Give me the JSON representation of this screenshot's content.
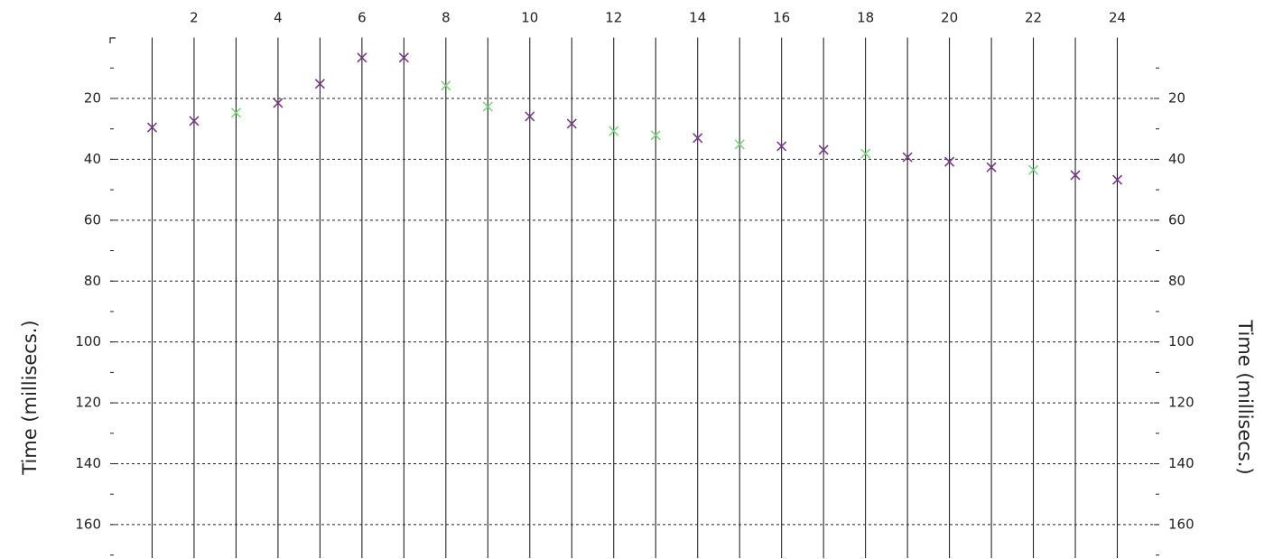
{
  "chart_data": {
    "type": "picks",
    "ylabel": "Time (millisecs.)",
    "y2label": "Time (millisecs.)",
    "x": [
      1,
      2,
      3,
      4,
      5,
      6,
      7,
      8,
      9,
      10,
      11,
      12,
      13,
      14,
      15,
      16,
      17,
      18,
      19,
      20,
      21,
      22,
      23,
      24
    ],
    "values": [
      29.5,
      27.4,
      24.7,
      21.5,
      15.2,
      6.6,
      6.6,
      15.8,
      22.7,
      25.9,
      28.3,
      30.7,
      32.1,
      33.0,
      35.1,
      35.7,
      36.9,
      38.1,
      39.3,
      40.8,
      42.6,
      43.5,
      45.2,
      46.7
    ],
    "point_colors": [
      "#7a3a8a",
      "#7a3a8a",
      "#7fd67f",
      "#7a3a8a",
      "#7a3a8a",
      "#7a3a8a",
      "#7a3a8a",
      "#7fd67f",
      "#7fd67f",
      "#7a3a8a",
      "#7a3a8a",
      "#7fd67f",
      "#7fd67f",
      "#7a3a8a",
      "#7fd67f",
      "#7a3a8a",
      "#7a3a8a",
      "#7fd67f",
      "#7a3a8a",
      "#7a3a8a",
      "#7a3a8a",
      "#7fd67f",
      "#7a3a8a",
      "#7a3a8a"
    ],
    "xlim": [
      0,
      25
    ],
    "xticks": [
      2,
      4,
      6,
      8,
      10,
      12,
      14,
      16,
      18,
      20,
      22,
      24
    ],
    "ylim": [
      0,
      171
    ],
    "yticks": [
      20,
      40,
      60,
      80,
      100,
      120,
      140,
      160
    ],
    "yminorticks": [
      10,
      30,
      50,
      70,
      90,
      110,
      130,
      150,
      170
    ],
    "grid": true,
    "y_inverted": true
  }
}
